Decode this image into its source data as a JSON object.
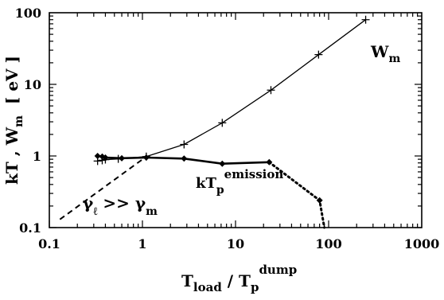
{
  "chart_data": {
    "type": "line",
    "xscale": "log",
    "yscale": "log",
    "xlim": [
      0.1,
      1000
    ],
    "ylim": [
      0.1,
      100
    ],
    "xticks": [
      "0.1",
      "1",
      "10",
      "100",
      "1000"
    ],
    "yticks": [
      "0.1",
      "1",
      "10",
      "100"
    ],
    "ylabel": {
      "pre": "kT ,  W",
      "sub": "m",
      "unit": "[ eV ]"
    },
    "xlabel": {
      "a": "T",
      "a_sub": "load",
      "slash": " / T",
      "b_sub": "p",
      "b_sup": "dump"
    },
    "series": [
      {
        "label": {
          "main": "W",
          "sub": "m"
        },
        "marker": "plus",
        "style": "solid",
        "x": [
          0.33,
          0.37,
          0.4,
          0.55,
          1.1,
          2.8,
          7.2,
          24,
          78,
          250
        ],
        "y": [
          0.85,
          0.87,
          0.89,
          0.91,
          0.98,
          1.45,
          2.9,
          8.3,
          26,
          80
        ]
      },
      {
        "label": {
          "main": "kT",
          "sub": "p",
          "sup": "emission"
        },
        "marker": "diamond",
        "style": "bold",
        "x": [
          0.33,
          0.37,
          0.4,
          0.6,
          1.1,
          2.8,
          7.2,
          23
        ],
        "y": [
          1.0,
          0.98,
          0.95,
          0.93,
          0.95,
          0.92,
          0.78,
          0.82
        ]
      },
      {
        "marker": "diamond",
        "style": "dotted",
        "x": [
          23,
          80,
          90
        ],
        "y": [
          0.82,
          0.24,
          0.1
        ]
      },
      {
        "label": {
          "g1": "γ",
          "g1_sub": "ℓ",
          "op": " >> ",
          "g2": "γ",
          "g2_sub": "m"
        },
        "marker": "none",
        "style": "dashed",
        "x": [
          0.13,
          1.1
        ],
        "y": [
          0.13,
          0.98
        ]
      }
    ]
  }
}
